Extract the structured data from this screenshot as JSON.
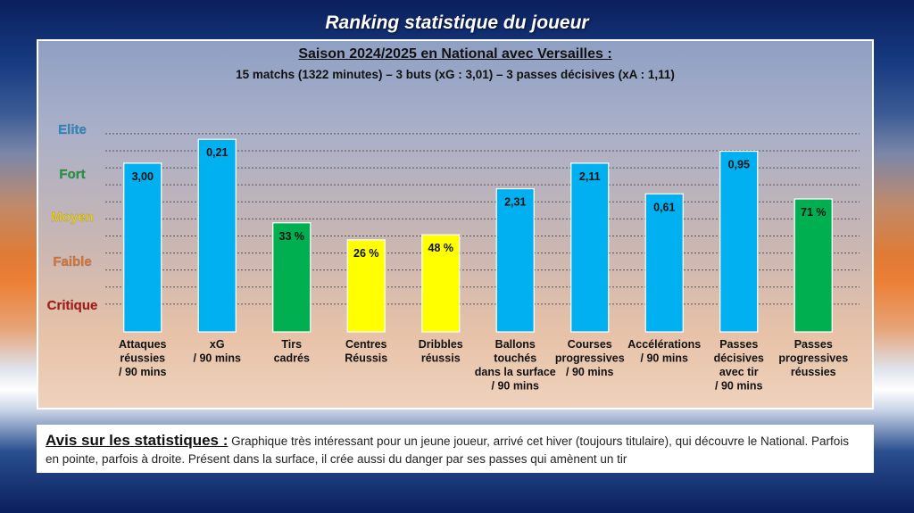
{
  "page_title": "Ranking statistique du joueur",
  "comment": {
    "heading": "Avis sur les statistiques :",
    "text": "Graphique très intéressant pour un jeune joueur, arrivé cet hiver (toujours titulaire), qui découvre le National. Parfois en pointe, parfois à droite. Présent dans la surface, il crée aussi du danger par ses passes qui amènent un tir"
  },
  "chart_data": {
    "type": "bar",
    "title": "Saison 2024/2025 en National avec Versailles :",
    "subtitle": "15 matchs (1322 minutes) – 3 buts (xG : 3,01) – 3 passes décisives (xA : 1,11)",
    "y_axis": {
      "levels": [
        {
          "label": "Elite",
          "color": "#2e8bc9",
          "value": 10
        },
        {
          "label": "Fort",
          "color": "#1f9a3e",
          "value": 8
        },
        {
          "label": "Moyen",
          "color": "#e9d21a",
          "value": 6
        },
        {
          "label": "Faible",
          "color": "#d9773a",
          "value": 4
        },
        {
          "label": "Critique",
          "color": "#b01818",
          "value": 2
        }
      ],
      "ylim": [
        0,
        12
      ],
      "grid_values": [
        1.5,
        2.5,
        3.5,
        4.5,
        5.5,
        6.5,
        7.5,
        8.5,
        9.5,
        10.5,
        11.5
      ]
    },
    "categories": [
      [
        "Attaques",
        "réussies",
        "/ 90 mins"
      ],
      [
        "xG",
        "/ 90 mins"
      ],
      [
        "Tirs",
        "cadrés"
      ],
      [
        "Centres",
        "Réussis"
      ],
      [
        "Dribbles",
        "réussis"
      ],
      [
        "Ballons",
        "touchés",
        "dans la surface",
        "/ 90 mins"
      ],
      [
        "Courses",
        "progressives",
        "/ 90 mins"
      ],
      [
        "Accélérations",
        "/ 90 mins"
      ],
      [
        "Passes",
        "décisives",
        "avec tir",
        "/ 90 mins"
      ],
      [
        "Passes",
        "progressives",
        "réussies"
      ]
    ],
    "values": [
      9.9,
      11.3,
      6.4,
      5.4,
      5.7,
      8.4,
      9.9,
      8.1,
      10.6,
      7.8
    ],
    "value_labels": [
      "3,00",
      "0,21",
      "33 %",
      "26 %",
      "48 %",
      "2,31",
      "2,11",
      "0,61",
      "0,95",
      "71 %"
    ],
    "bar_colors": [
      "#00b0f0",
      "#00b0f0",
      "#00b050",
      "#ffff00",
      "#ffff00",
      "#00b0f0",
      "#00b0f0",
      "#00b0f0",
      "#00b0f0",
      "#00b050"
    ]
  }
}
